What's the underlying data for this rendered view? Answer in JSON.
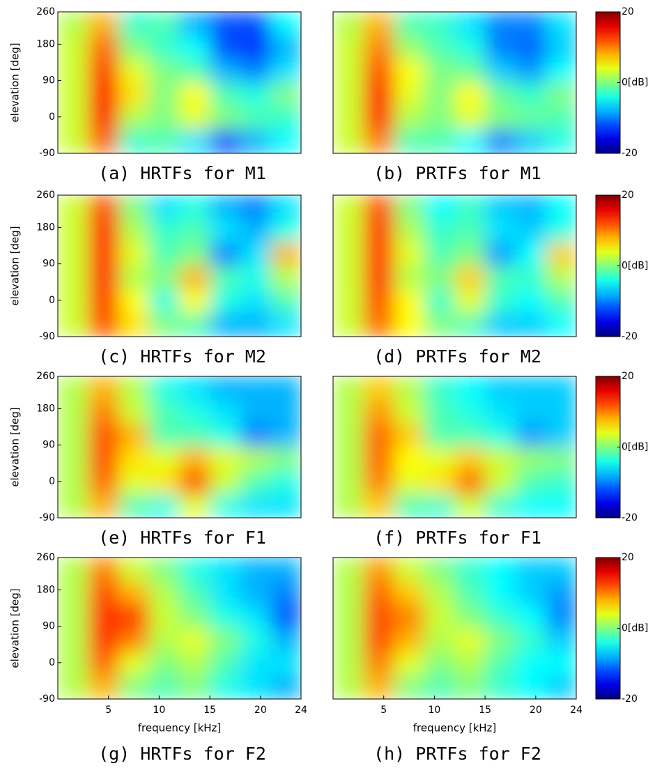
{
  "chart_data": [
    {
      "type": "heatmap",
      "title": "(a) HRTFs for M1",
      "ylabel": "elevation [deg]",
      "xlim": [
        0,
        24
      ],
      "ylim": [
        -90,
        260
      ],
      "yticks": [
        -90,
        0,
        90,
        180,
        260
      ],
      "z": [
        [
          2,
          8,
          -3,
          -2,
          -8,
          -12,
          -12,
          -5
        ],
        [
          3,
          11,
          0,
          -3,
          -5,
          -12,
          -13,
          -8
        ],
        [
          3,
          13,
          4,
          0,
          -2,
          -8,
          -10,
          -6
        ],
        [
          3,
          15,
          6,
          0,
          5,
          -2,
          -4,
          0
        ],
        [
          3,
          15,
          2,
          0,
          4,
          0,
          -2,
          -3
        ],
        [
          3,
          11,
          -3,
          -2,
          -6,
          -12,
          -8,
          -5
        ]
      ]
    },
    {
      "type": "heatmap",
      "title": "(b) PRTFs for M1",
      "xlim": [
        0,
        24
      ],
      "ylim": [
        -90,
        260
      ],
      "clim": [
        -20,
        20
      ],
      "cticks": [
        20,
        {
          "value": 0,
          "label": "0[dB]"
        },
        -20
      ],
      "z": [
        [
          2,
          8,
          -2,
          -3,
          -6,
          -10,
          -10,
          -6
        ],
        [
          3,
          10,
          1,
          -2,
          -4,
          -10,
          -11,
          -7
        ],
        [
          3,
          12,
          5,
          0,
          -1,
          -7,
          -9,
          -5
        ],
        [
          3,
          14,
          4,
          0,
          5,
          -1,
          -3,
          0
        ],
        [
          3,
          14,
          2,
          0,
          4,
          0,
          -1,
          -2
        ],
        [
          3,
          10,
          -2,
          -2,
          -5,
          -10,
          -7,
          -4
        ]
      ]
    },
    {
      "type": "heatmap",
      "title": "(c) HRTFs for M2",
      "ylabel": "elevation [deg]",
      "xlim": [
        0,
        24
      ],
      "ylim": [
        -90,
        260
      ],
      "yticks": [
        -90,
        0,
        90,
        180,
        260
      ],
      "z": [
        [
          3,
          12,
          0,
          -6,
          -4,
          -8,
          -10,
          -6
        ],
        [
          3,
          14,
          2,
          -3,
          -2,
          -6,
          -8,
          -4
        ],
        [
          3,
          14,
          4,
          -2,
          0,
          -10,
          -6,
          8
        ],
        [
          3,
          14,
          2,
          0,
          8,
          -2,
          -4,
          2
        ],
        [
          3,
          13,
          5,
          -4,
          5,
          -4,
          -6,
          -2
        ],
        [
          3,
          12,
          6,
          0,
          -2,
          -8,
          -8,
          -6
        ]
      ]
    },
    {
      "type": "heatmap",
      "title": "(d) PRTFs for M2",
      "xlim": [
        0,
        24
      ],
      "ylim": [
        -90,
        260
      ],
      "clim": [
        -20,
        20
      ],
      "cticks": [
        20,
        {
          "value": 0,
          "label": "0[dB]"
        },
        -20
      ],
      "z": [
        [
          3,
          12,
          0,
          -5,
          -3,
          -7,
          -8,
          -5
        ],
        [
          3,
          13,
          2,
          -3,
          -2,
          -6,
          -7,
          -4
        ],
        [
          3,
          13,
          4,
          -2,
          0,
          -9,
          -5,
          7
        ],
        [
          3,
          13,
          2,
          0,
          7,
          -2,
          -3,
          2
        ],
        [
          3,
          12,
          5,
          -3,
          4,
          -3,
          -5,
          -2
        ],
        [
          3,
          11,
          5,
          0,
          -2,
          -7,
          -7,
          -5
        ]
      ]
    },
    {
      "type": "heatmap",
      "title": "(e) HRTFs for F1",
      "ylabel": "elevation [deg]",
      "xlim": [
        0,
        24
      ],
      "ylim": [
        -90,
        260
      ],
      "yticks": [
        -90,
        0,
        90,
        180,
        260
      ],
      "z": [
        [
          2,
          8,
          2,
          -4,
          -6,
          -8,
          -8,
          -8
        ],
        [
          2,
          10,
          3,
          -2,
          -4,
          -6,
          -8,
          -8
        ],
        [
          2,
          12,
          8,
          -2,
          -2,
          -4,
          -10,
          -8
        ],
        [
          2,
          12,
          6,
          4,
          8,
          4,
          2,
          0
        ],
        [
          2,
          11,
          4,
          6,
          12,
          3,
          -2,
          -4
        ],
        [
          2,
          8,
          -2,
          -4,
          4,
          -4,
          -6,
          -6
        ]
      ]
    },
    {
      "type": "heatmap",
      "title": "(f) PRTFs for F1",
      "xlim": [
        0,
        24
      ],
      "ylim": [
        -90,
        260
      ],
      "clim": [
        -20,
        20
      ],
      "cticks": [
        20,
        {
          "value": 0,
          "label": "0[dB]"
        },
        -20
      ],
      "z": [
        [
          2,
          7,
          2,
          -3,
          -5,
          -7,
          -7,
          -7
        ],
        [
          2,
          9,
          3,
          -2,
          -4,
          -6,
          -7,
          -7
        ],
        [
          2,
          11,
          7,
          -2,
          -2,
          -4,
          -9,
          -7
        ],
        [
          2,
          11,
          5,
          4,
          7,
          3,
          1,
          0
        ],
        [
          2,
          10,
          4,
          6,
          11,
          3,
          -2,
          -3
        ],
        [
          2,
          7,
          -2,
          -3,
          3,
          -3,
          -5,
          -5
        ]
      ]
    },
    {
      "type": "heatmap",
      "title": "(g) HRTFs for F2",
      "ylabel": "elevation [deg]",
      "xlabel": "frequency [kHz]",
      "xlim": [
        0,
        24
      ],
      "ylim": [
        -90,
        260
      ],
      "xticks": [
        5,
        10,
        15,
        20,
        24
      ],
      "yticks": [
        -90,
        0,
        90,
        180,
        260
      ],
      "z": [
        [
          2,
          10,
          3,
          0,
          -4,
          -6,
          -8,
          -8
        ],
        [
          2,
          12,
          8,
          2,
          -2,
          -6,
          -8,
          -10
        ],
        [
          2,
          13,
          13,
          3,
          0,
          -4,
          -6,
          -12
        ],
        [
          2,
          13,
          10,
          2,
          4,
          0,
          -4,
          -8
        ],
        [
          2,
          11,
          4,
          0,
          2,
          -2,
          -6,
          -6
        ],
        [
          2,
          8,
          0,
          -2,
          0,
          -4,
          -6,
          -8
        ]
      ]
    },
    {
      "type": "heatmap",
      "title": "(h) PRTFs for F2",
      "xlabel": "frequency [kHz]",
      "xlim": [
        0,
        24
      ],
      "ylim": [
        -90,
        260
      ],
      "xticks": [
        5,
        10,
        15,
        20,
        24
      ],
      "clim": [
        -20,
        20
      ],
      "cticks": [
        20,
        {
          "value": 0,
          "label": "0[dB]"
        },
        -20
      ],
      "z": [
        [
          2,
          9,
          3,
          0,
          -3,
          -5,
          -7,
          -7
        ],
        [
          2,
          11,
          7,
          2,
          -2,
          -5,
          -7,
          -9
        ],
        [
          2,
          12,
          10,
          3,
          0,
          -3,
          -5,
          -10
        ],
        [
          2,
          12,
          8,
          2,
          4,
          0,
          -3,
          -7
        ],
        [
          2,
          10,
          4,
          0,
          2,
          -2,
          -5,
          -5
        ],
        [
          2,
          8,
          0,
          -2,
          0,
          -3,
          -5,
          -7
        ]
      ]
    }
  ]
}
